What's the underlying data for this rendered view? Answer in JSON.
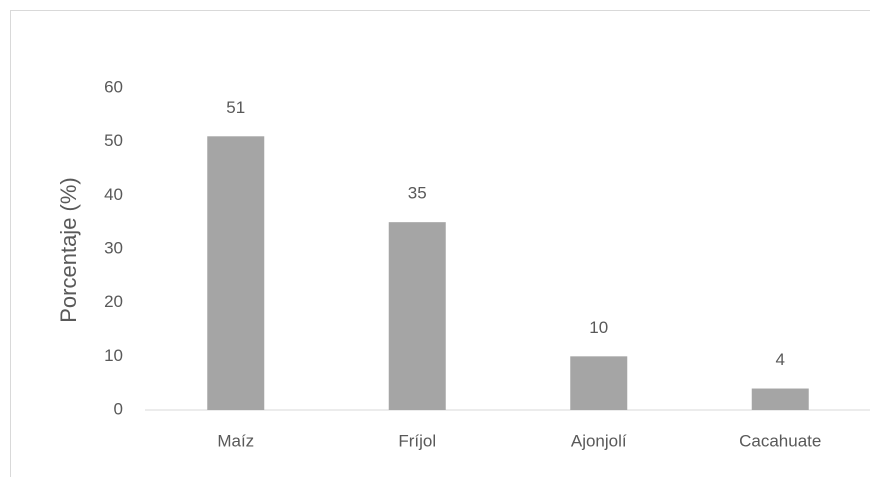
{
  "chart_data": {
    "type": "bar",
    "y_label": "Porcentaje (%)",
    "categories": [
      "Maíz",
      "Fríjol",
      "Ajonjolí",
      "Cacahuate"
    ],
    "values": [
      51,
      35,
      10,
      4
    ],
    "color": "#a5a5a5",
    "ylim": [
      0,
      60
    ],
    "yticks": [
      0,
      10,
      20,
      30,
      40,
      50,
      60
    ],
    "grid": false
  }
}
